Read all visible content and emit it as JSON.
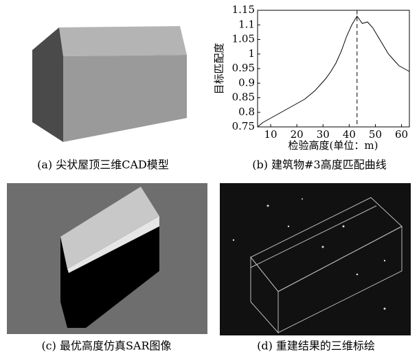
{
  "captions": {
    "a": "(a) 尖状屋顶三维CAD模型",
    "b": "(b) 建筑物#3高度匹配曲线",
    "c": "(c) 最优高度仿真SAR图像",
    "d": "(d) 重建结果的三维标绘"
  },
  "chart_data": {
    "type": "line",
    "xlabel": "检验高度(单位：m)",
    "ylabel": "目标匹配度",
    "x": [
      5,
      7,
      9,
      11,
      13,
      15,
      17,
      19,
      21,
      23,
      25,
      27,
      29,
      31,
      33,
      35,
      37,
      39,
      41,
      43,
      45,
      47,
      49,
      51,
      53,
      55,
      57,
      59,
      61,
      63
    ],
    "series": [
      {
        "name": "目标匹配度",
        "color": "#000000",
        "values": [
          0.75,
          0.765,
          0.775,
          0.785,
          0.795,
          0.805,
          0.815,
          0.825,
          0.835,
          0.845,
          0.86,
          0.875,
          0.895,
          0.915,
          0.94,
          0.97,
          1.01,
          1.06,
          1.1,
          1.13,
          1.105,
          1.11,
          1.09,
          1.06,
          1.03,
          1.0,
          0.98,
          0.96,
          0.95,
          0.94
        ]
      }
    ],
    "vline": 43,
    "xlim": [
      5,
      63
    ],
    "xticks": [
      10,
      20,
      30,
      40,
      50,
      60
    ],
    "ylim": [
      0.75,
      1.15
    ],
    "yticks": [
      0.75,
      0.8,
      0.85,
      0.9,
      0.95,
      1.0,
      1.05,
      1.1,
      1.15
    ]
  }
}
